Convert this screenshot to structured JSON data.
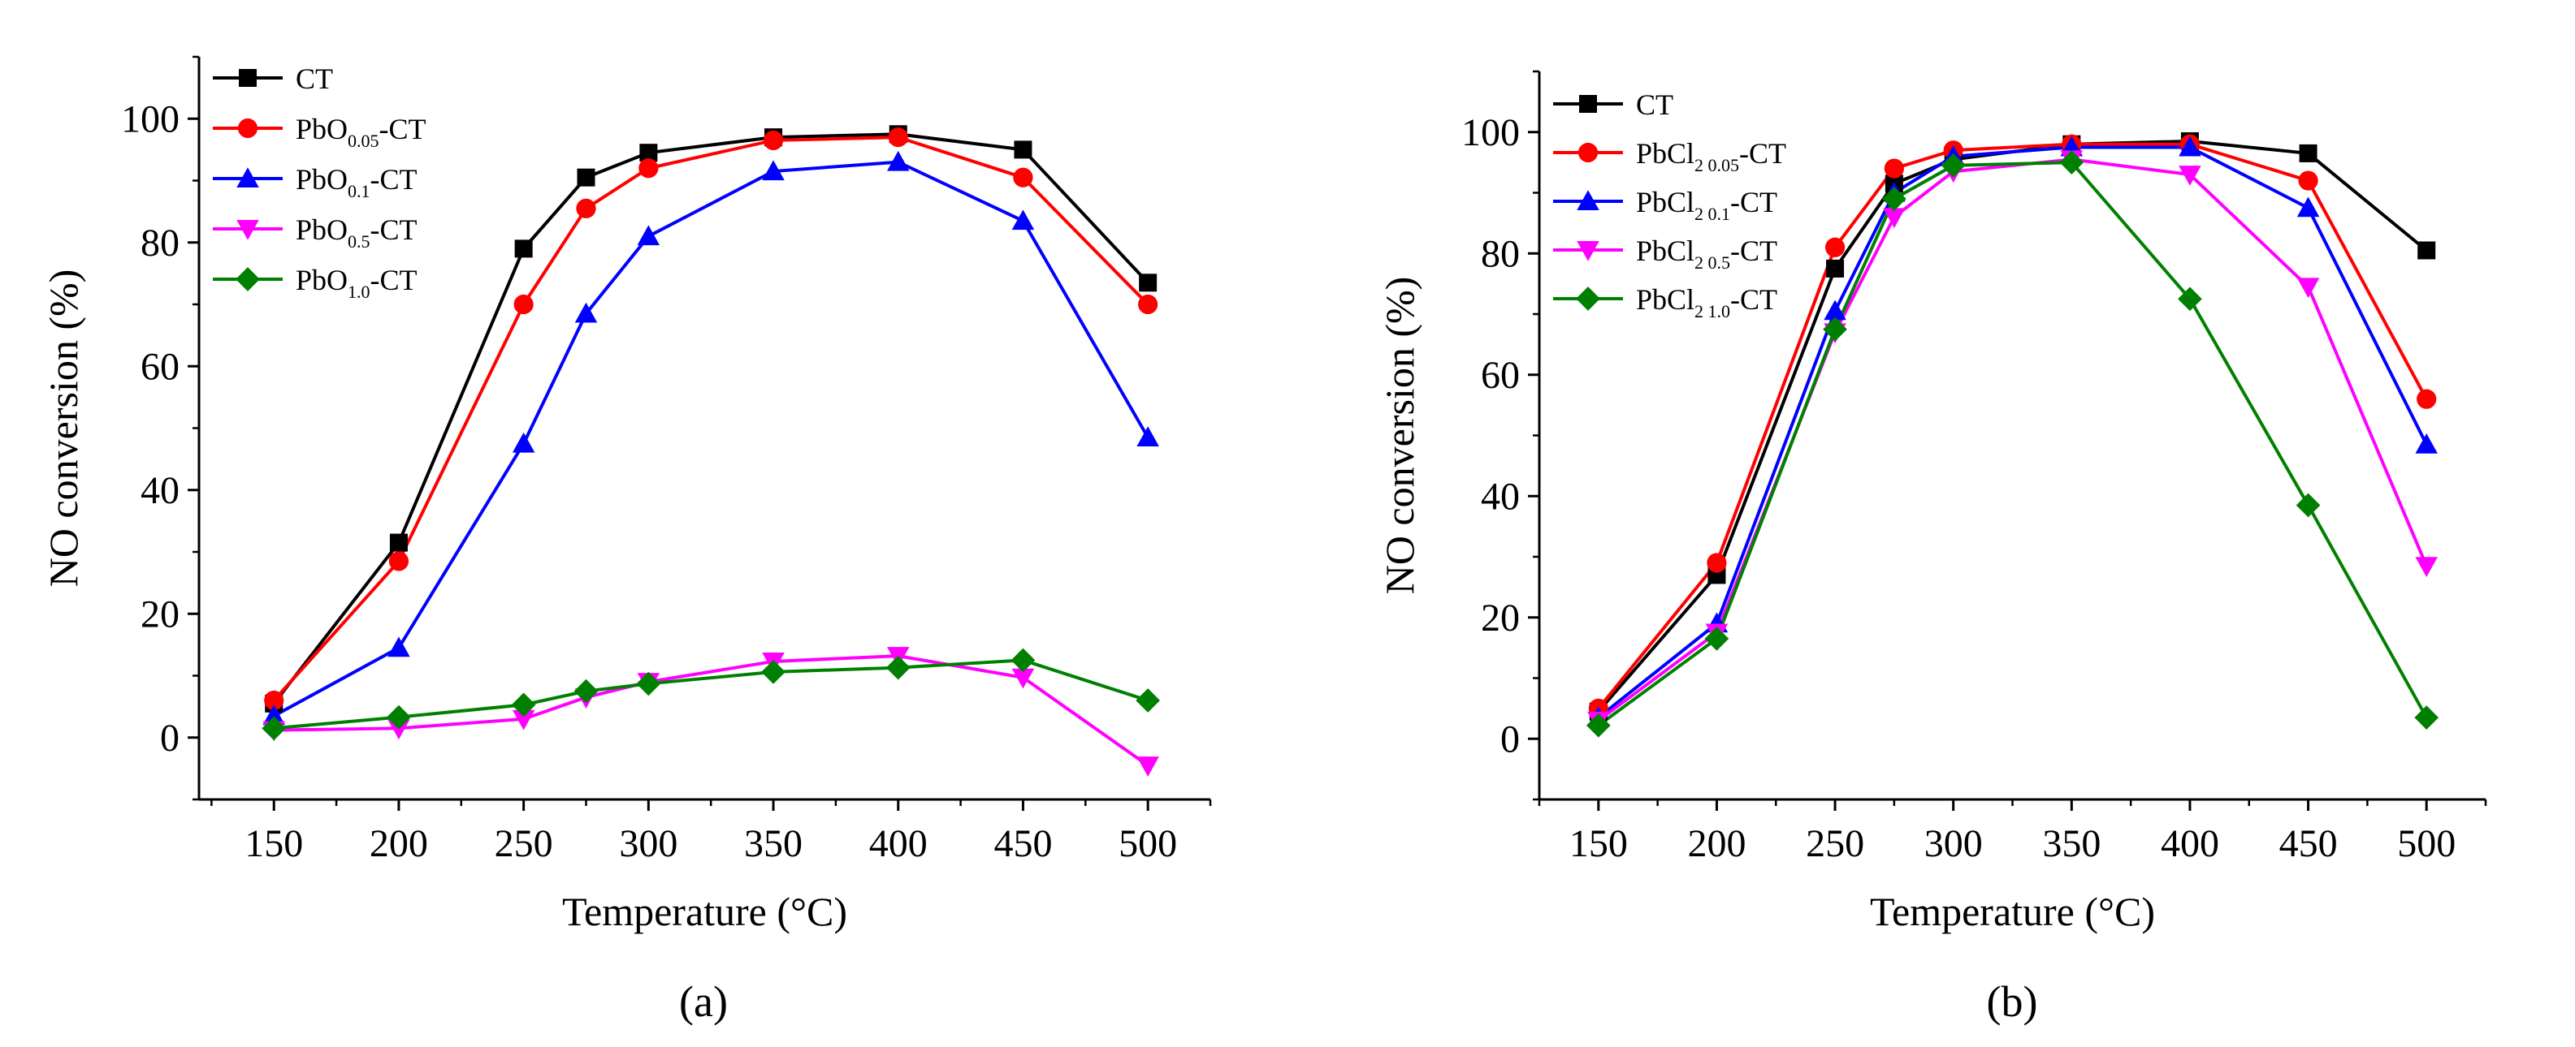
{
  "chart_data": [
    {
      "id": "a",
      "type": "line",
      "panel_label": "(a)",
      "xlabel": "Temperature (°C)",
      "ylabel": "NO conversion (%)",
      "xlim": [
        120,
        525
      ],
      "ylim": [
        -10,
        110
      ],
      "xticks": [
        150,
        200,
        250,
        300,
        350,
        400,
        450,
        500
      ],
      "yticks": [
        0,
        20,
        40,
        60,
        80,
        100
      ],
      "legend_position": "top-left",
      "x": [
        150,
        200,
        250,
        275,
        300,
        350,
        400,
        450,
        500
      ],
      "series": [
        {
          "name": "CT",
          "legend": {
            "base": "CT",
            "sub": "",
            "suffix": ""
          },
          "color": "#000000",
          "marker": "square",
          "values": [
            5.5,
            31.5,
            79,
            90.5,
            94.5,
            97,
            97.5,
            95,
            73.5
          ]
        },
        {
          "name": "PbO0.05-CT",
          "legend": {
            "base": "PbO",
            "sub": "0.05",
            "suffix": "-CT"
          },
          "color": "#ff0000",
          "marker": "circle",
          "values": [
            6,
            28.5,
            70,
            85.5,
            92,
            96.5,
            97,
            90.5,
            70
          ]
        },
        {
          "name": "PbO0.1-CT",
          "legend": {
            "base": "PbO",
            "sub": "0.1",
            "suffix": "-CT"
          },
          "color": "#0000ff",
          "marker": "triangle-up",
          "values": [
            3.5,
            14.5,
            47.5,
            68.5,
            81,
            91.5,
            93,
            83.5,
            48.5
          ]
        },
        {
          "name": "PbO0.5-CT",
          "legend": {
            "base": "PbO",
            "sub": "0.5",
            "suffix": "-CT"
          },
          "color": "#ff00ff",
          "marker": "triangle-down",
          "values": [
            1.2,
            1.5,
            3,
            6.5,
            9,
            12.3,
            13.2,
            9.7,
            -4.5
          ]
        },
        {
          "name": "PbO1.0-CT",
          "legend": {
            "base": "PbO",
            "sub": "1.0",
            "suffix": "-CT"
          },
          "color": "#008000",
          "marker": "diamond",
          "values": [
            1.5,
            3.3,
            5.3,
            7.5,
            8.7,
            10.6,
            11.3,
            12.5,
            6
          ]
        }
      ]
    },
    {
      "id": "b",
      "type": "line",
      "panel_label": "(b)",
      "xlabel": "Temperature (°C)",
      "ylabel": "NO conversion (%)",
      "xlim": [
        125,
        525
      ],
      "ylim": [
        -10,
        110
      ],
      "xticks": [
        150,
        200,
        250,
        300,
        350,
        400,
        450,
        500
      ],
      "yticks": [
        0,
        20,
        40,
        60,
        80,
        100
      ],
      "legend_position": "top-left",
      "x": [
        150,
        200,
        250,
        275,
        300,
        350,
        400,
        450,
        500
      ],
      "series": [
        {
          "name": "CT",
          "legend": {
            "base": "CT",
            "sub": "",
            "suffix": ""
          },
          "color": "#000000",
          "marker": "square",
          "values": [
            4.5,
            27,
            77.5,
            91.5,
            95.5,
            98,
            98.5,
            96.5,
            80.5
          ]
        },
        {
          "name": "PbCl2 0.05-CT",
          "legend": {
            "base": "PbCl",
            "sub": "2 0.05",
            "suffix": "-CT"
          },
          "color": "#ff0000",
          "marker": "circle",
          "values": [
            5,
            29,
            81,
            94,
            97,
            98,
            98,
            92,
            56
          ]
        },
        {
          "name": "PbCl2 0.1-CT",
          "legend": {
            "base": "PbCl",
            "sub": "2 0.1",
            "suffix": "-CT"
          },
          "color": "#0000ff",
          "marker": "triangle-up",
          "values": [
            3.5,
            19,
            70.5,
            90,
            96,
            97.5,
            97.5,
            87.5,
            48.5
          ]
        },
        {
          "name": "PbCl2 0.5-CT",
          "legend": {
            "base": "PbCl",
            "sub": "2 0.5",
            "suffix": "-CT"
          },
          "color": "#ff00ff",
          "marker": "triangle-down",
          "values": [
            3,
            17.5,
            67,
            86,
            93.5,
            95.5,
            93,
            74.5,
            28.5
          ]
        },
        {
          "name": "PbCl2 1.0-CT",
          "legend": {
            "base": "PbCl",
            "sub": "2 1.0",
            "suffix": "-CT"
          },
          "color": "#008000",
          "marker": "diamond",
          "values": [
            2.2,
            16.5,
            67.5,
            89,
            94.5,
            95,
            72.5,
            38.5,
            3.5
          ]
        }
      ]
    }
  ]
}
